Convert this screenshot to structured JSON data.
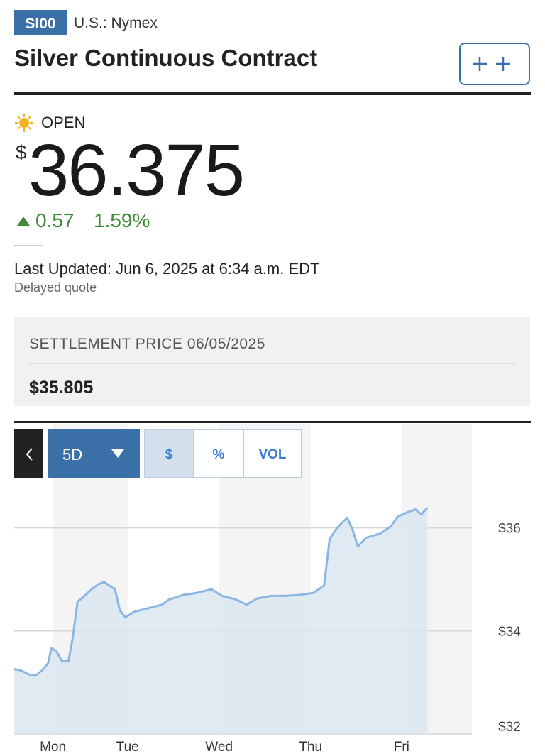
{
  "header": {
    "ticker": "SI00",
    "exchange": "U.S.: Nymex",
    "title": "Silver Continuous Contract"
  },
  "quote": {
    "status": "OPEN",
    "currency": "$",
    "price": "36.375",
    "change": "0.57",
    "change_percent": "1.59%",
    "last_updated": "Last Updated: Jun 6, 2025 at 6:34 a.m. EDT",
    "note": "Delayed quote"
  },
  "settlement": {
    "label": "SETTLEMENT PRICE 06/05/2025",
    "value": "$35.805"
  },
  "controls": {
    "range": "5D",
    "modes": [
      "$",
      "%",
      "VOL"
    ]
  },
  "chart_data": {
    "type": "area",
    "x": [
      -0.423,
      -0.346,
      -0.269,
      -0.192,
      -0.115,
      -0.054,
      -0.015,
      0.038,
      0.1,
      0.169,
      0.215,
      0.269,
      0.346,
      0.423,
      0.5,
      0.562,
      0.615,
      0.677,
      0.731,
      0.792,
      0.885,
      1.038,
      1.192,
      1.269,
      1.423,
      1.577,
      1.731,
      1.846,
      2.0,
      2.115,
      2.231,
      2.385,
      2.538,
      2.692,
      2.846,
      2.962,
      3.023,
      3.1,
      3.169,
      3.215,
      3.269,
      3.331,
      3.423,
      3.577,
      3.692,
      3.769,
      3.869,
      3.962,
      4.023,
      4.092
    ],
    "values": [
      33.26,
      33.23,
      33.16,
      33.13,
      33.24,
      33.37,
      33.67,
      33.6,
      33.41,
      33.41,
      33.85,
      34.57,
      34.68,
      34.81,
      34.91,
      34.95,
      34.88,
      34.81,
      34.4,
      34.26,
      34.37,
      34.44,
      34.51,
      34.61,
      34.7,
      34.74,
      34.81,
      34.68,
      34.61,
      34.51,
      34.63,
      34.68,
      34.68,
      34.7,
      34.74,
      34.88,
      35.78,
      35.99,
      36.12,
      36.19,
      35.99,
      35.64,
      35.81,
      35.89,
      36.03,
      36.22,
      36.3,
      36.36,
      36.26,
      36.39
    ],
    "color": "#8cb6e2",
    "fill_color": "#dbe6f1",
    "band_color": "#f4f4f4",
    "xlim": [
      -0.423,
      4.577
    ],
    "ylim": [
      32,
      36.6
    ],
    "xticks": [
      {
        "value": 0,
        "label": "Mon"
      },
      {
        "value": 0.815,
        "label": "Tue"
      },
      {
        "value": 1.815,
        "label": "Wed"
      },
      {
        "value": 2.815,
        "label": "Thu"
      },
      {
        "value": 3.808,
        "label": "Fri"
      }
    ],
    "yticks": [
      {
        "value": 32,
        "label": "$32"
      },
      {
        "value": 34,
        "label": "$34"
      },
      {
        "value": 36,
        "label": "$36"
      }
    ],
    "grid": true
  }
}
